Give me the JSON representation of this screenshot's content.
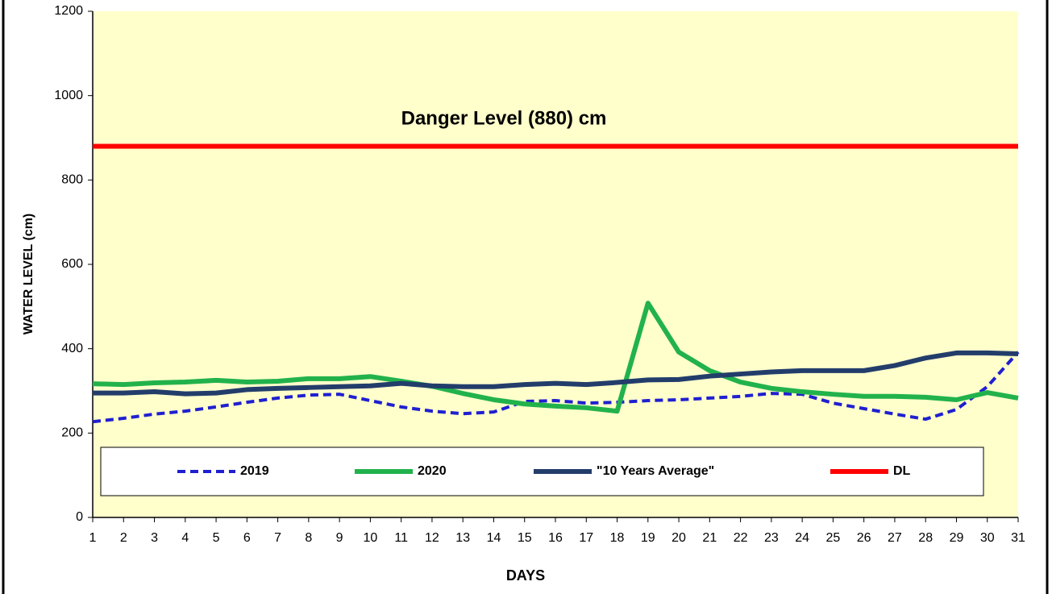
{
  "chart_data": {
    "type": "line",
    "annotation": "Danger Level (880) cm",
    "x_label": "DAYS",
    "y_label": "WATER LEVEL (cm)",
    "x": [
      1,
      2,
      3,
      4,
      5,
      6,
      7,
      8,
      9,
      10,
      11,
      12,
      13,
      14,
      15,
      16,
      17,
      18,
      19,
      20,
      21,
      22,
      23,
      24,
      25,
      26,
      27,
      28,
      29,
      30,
      31
    ],
    "xlim": [
      1,
      31
    ],
    "xticks": [
      1,
      2,
      3,
      4,
      5,
      6,
      7,
      8,
      9,
      10,
      11,
      12,
      13,
      14,
      15,
      16,
      17,
      18,
      19,
      20,
      21,
      22,
      23,
      24,
      25,
      26,
      27,
      28,
      29,
      30,
      31
    ],
    "ylim": [
      0,
      1200
    ],
    "yticks": [
      0,
      200,
      400,
      600,
      800,
      1000,
      1200
    ],
    "grid": false,
    "legend": "bottom",
    "background": "#ffffcc",
    "series": [
      {
        "name": "2019",
        "color": "#1f1fd1",
        "dashed": true,
        "values": [
          227,
          235,
          245,
          252,
          262,
          273,
          283,
          290,
          292,
          277,
          262,
          252,
          246,
          250,
          275,
          277,
          271,
          273,
          277,
          279,
          283,
          287,
          294,
          292,
          271,
          258,
          245,
          233,
          256,
          310,
          392
        ]
      },
      {
        "name": "2020",
        "color": "#22b24c",
        "dashed": false,
        "values": [
          317,
          315,
          319,
          321,
          325,
          321,
          323,
          329,
          329,
          334,
          323,
          311,
          294,
          279,
          269,
          264,
          260,
          252,
          508,
          392,
          348,
          321,
          306,
          298,
          292,
          287,
          287,
          285,
          279,
          296,
          283
        ]
      },
      {
        "name": "\"10 Years Average\"",
        "color": "#233d6b",
        "dashed": false,
        "values": [
          295,
          295,
          298,
          293,
          295,
          303,
          306,
          308,
          310,
          312,
          318,
          312,
          310,
          310,
          315,
          318,
          315,
          320,
          326,
          327,
          335,
          340,
          345,
          348,
          348,
          348,
          360,
          378,
          390,
          390,
          388
        ]
      },
      {
        "name": "DL",
        "color": "#ff0000",
        "dashed": false,
        "values": [
          880,
          880,
          880,
          880,
          880,
          880,
          880,
          880,
          880,
          880,
          880,
          880,
          880,
          880,
          880,
          880,
          880,
          880,
          880,
          880,
          880,
          880,
          880,
          880,
          880,
          880,
          880,
          880,
          880,
          880,
          880
        ]
      }
    ]
  }
}
